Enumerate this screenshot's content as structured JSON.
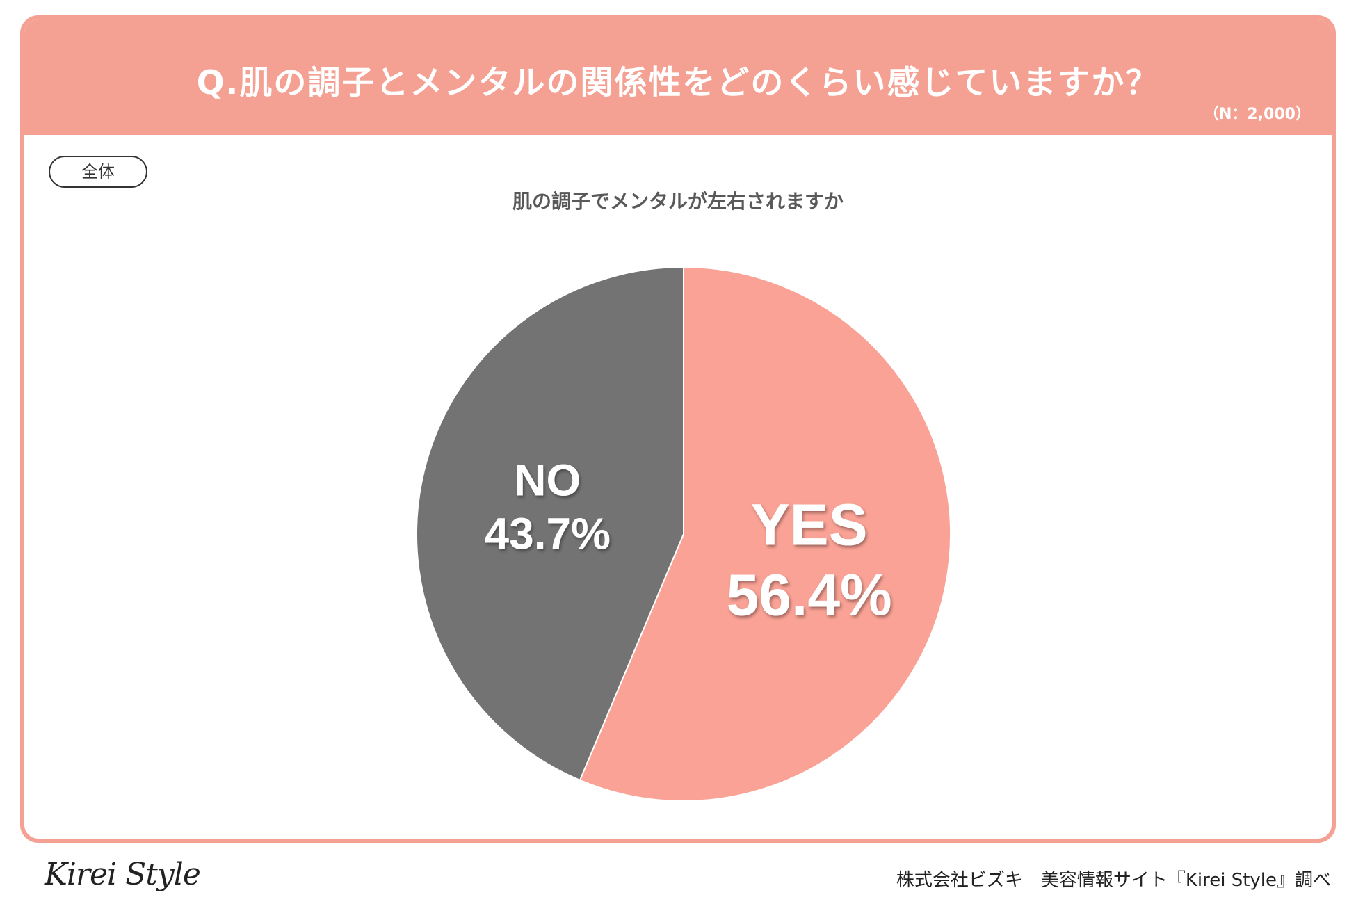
{
  "header": {
    "question": "Q.肌の調子とメンタルの関係性をどのくらい感じていますか？",
    "sample_size": "（N：2,000）"
  },
  "segment_label": "全体",
  "footer": {
    "logo": "Kirei Style",
    "credit": "株式会社ビズキ　美容情報サイト『Kirei Style』調べ"
  },
  "colors": {
    "accent": "#F4A193",
    "yes": "#F9A295",
    "no": "#737373"
  },
  "chart_data": {
    "type": "pie",
    "title": "肌の調子でメンタルが左右されますか",
    "slices": [
      {
        "label": "YES",
        "value": 56.4,
        "display": "56.4%",
        "color": "#F9A295"
      },
      {
        "label": "NO",
        "value": 43.7,
        "display": "43.7%",
        "color": "#737373"
      }
    ],
    "start": "12 o'clock",
    "direction": "clockwise"
  }
}
